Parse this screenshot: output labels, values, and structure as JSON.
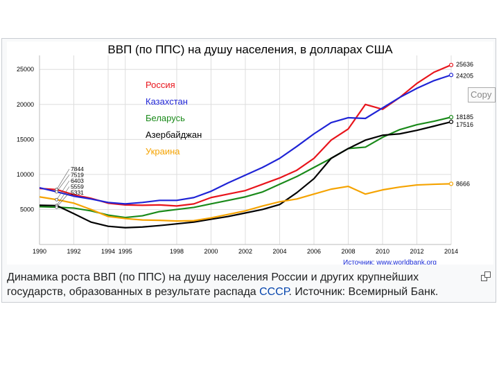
{
  "chart_data": {
    "type": "line",
    "title": "ВВП (по ППС) на душу населения, в долларах США",
    "x": [
      1990,
      1991,
      1992,
      1993,
      1994,
      1995,
      1996,
      1997,
      1998,
      1999,
      2000,
      2001,
      2002,
      2003,
      2004,
      2005,
      2006,
      2007,
      2008,
      2009,
      2010,
      2011,
      2012,
      2013,
      2014
    ],
    "x_ticks": [
      1990,
      1992,
      1994,
      1995,
      1998,
      2000,
      2002,
      2004,
      2006,
      2008,
      2010,
      2012,
      2014
    ],
    "y_ticks": [
      5000,
      10000,
      15000,
      20000,
      25000
    ],
    "xlim": [
      1990,
      2014
    ],
    "ylim": [
      0,
      27000
    ],
    "legend_position": "top-center",
    "series": [
      {
        "name": "Россия",
        "color": "#e8141b",
        "values": [
          8000,
          7844,
          7100,
          6600,
          5900,
          5650,
          5600,
          5650,
          5500,
          5800,
          6700,
          7200,
          7700,
          8600,
          9500,
          10600,
          12300,
          14900,
          16500,
          20000,
          19300,
          21000,
          23000,
          24600,
          25636
        ],
        "end_label": "25636"
      },
      {
        "name": "Казахстан",
        "color": "#1f24d6",
        "values": [
          8100,
          7519,
          6900,
          6500,
          6000,
          5800,
          6000,
          6300,
          6300,
          6700,
          7600,
          8800,
          9900,
          11000,
          12300,
          14000,
          15800,
          17400,
          18100,
          18000,
          19500,
          21000,
          22300,
          23400,
          24205
        ],
        "end_label": "24205"
      },
      {
        "name": "Беларусь",
        "color": "#1a8a1a",
        "values": [
          5400,
          5331,
          5200,
          4800,
          4200,
          3850,
          4100,
          4700,
          5000,
          5300,
          5800,
          6300,
          6800,
          7500,
          8600,
          9700,
          11000,
          12300,
          13700,
          13900,
          15300,
          16400,
          17100,
          17600,
          18185
        ],
        "end_label": "18185"
      },
      {
        "name": "Азербайджан",
        "color": "#000000",
        "values": [
          5600,
          5559,
          4400,
          3200,
          2600,
          2400,
          2500,
          2700,
          2950,
          3200,
          3600,
          4000,
          4500,
          5000,
          5700,
          7400,
          9400,
          12300,
          13700,
          14900,
          15600,
          15800,
          16300,
          16900,
          17516
        ],
        "end_label": "17516"
      },
      {
        "name": "Украина",
        "color": "#f5a300",
        "values": [
          6800,
          6403,
          5900,
          5000,
          4000,
          3700,
          3500,
          3450,
          3350,
          3400,
          3800,
          4300,
          4800,
          5500,
          6100,
          6500,
          7200,
          7900,
          8300,
          7200,
          7800,
          8200,
          8500,
          8600,
          8666
        ],
        "end_label": "8666"
      }
    ],
    "start_labels": [
      "7844",
      "7519",
      "6403",
      "5559",
      "5331"
    ],
    "source": "Источник: www.worldbank.org"
  },
  "caption": {
    "text_before_link": "Динамика роста ВВП (по ППС) на душу населения России и других крупнейших государств, образованных в результате распада ",
    "link": "СССР",
    "text_after_link": ". Источник: Всемирный Банк."
  },
  "tooltip": "Copy",
  "icons": {
    "expand": "expand-icon"
  }
}
